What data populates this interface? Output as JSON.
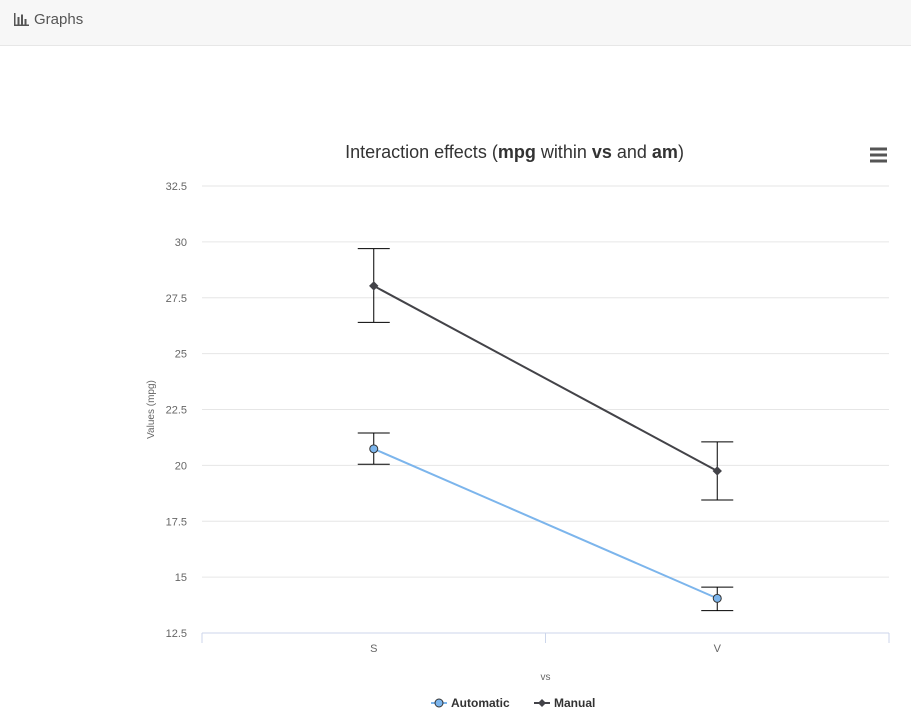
{
  "panel": {
    "title": "Graphs",
    "icon": "bar-chart-icon"
  },
  "chart_data": {
    "type": "line",
    "title_parts": [
      {
        "text": "Interaction effects (",
        "bold": false
      },
      {
        "text": "mpg",
        "bold": true
      },
      {
        "text": " within ",
        "bold": false
      },
      {
        "text": "vs",
        "bold": true
      },
      {
        "text": " and ",
        "bold": false
      },
      {
        "text": "am",
        "bold": true
      },
      {
        "text": ")",
        "bold": false
      }
    ],
    "xlabel": "vs",
    "ylabel": "Values (mpg)",
    "categories": [
      "S",
      "V"
    ],
    "ylim": [
      12.5,
      32.5
    ],
    "yticks": [
      "12.5",
      "15",
      "17.5",
      "20",
      "22.5",
      "25",
      "27.5",
      "30",
      "32.5"
    ],
    "grid": true,
    "legend_position": "bottom-center",
    "series": [
      {
        "name": "Automatic",
        "marker": "circle",
        "color": "#7cb5ec",
        "values": [
          20.74,
          14.05
        ],
        "error_low": [
          20.05,
          13.5
        ],
        "error_high": [
          21.45,
          14.55
        ]
      },
      {
        "name": "Manual",
        "marker": "diamond",
        "color": "#434348",
        "values": [
          28.03,
          19.75
        ],
        "error_low": [
          26.4,
          18.45
        ],
        "error_high": [
          29.7,
          21.05
        ]
      }
    ]
  }
}
